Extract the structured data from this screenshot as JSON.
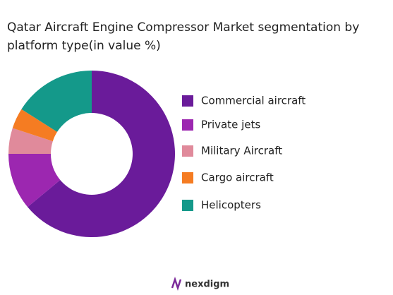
{
  "chart_data": {
    "type": "donut",
    "title": "Qatar Aircraft Engine Compressor Market segmentation by platform type(in value %)",
    "categories": [
      "Commercial aircraft",
      "Private jets",
      "Military Aircraft",
      "Cargo aircraft",
      "Helicopters"
    ],
    "values": [
      64,
      11,
      5,
      4,
      16
    ],
    "colors": [
      "#6a1b9a",
      "#9c27b0",
      "#e08a9b",
      "#f57c22",
      "#14998a"
    ],
    "legend": "right"
  },
  "brand": "nexdigm"
}
